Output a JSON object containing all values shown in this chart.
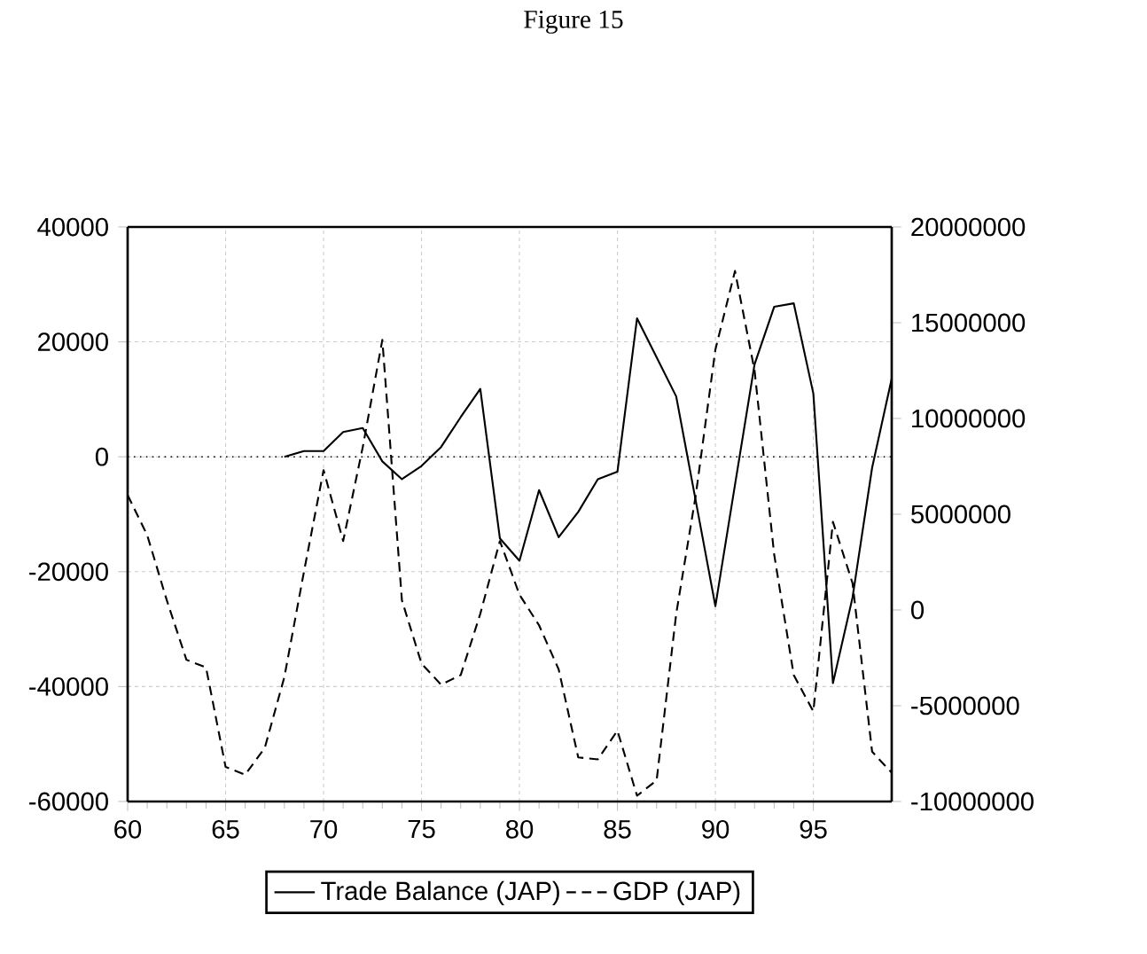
{
  "chart_data": {
    "type": "line",
    "title": "Figure 15",
    "x": [
      60,
      61,
      62,
      63,
      64,
      65,
      66,
      67,
      68,
      69,
      70,
      71,
      72,
      73,
      74,
      75,
      76,
      77,
      78,
      79,
      80,
      81,
      82,
      83,
      84,
      85,
      86,
      87,
      88,
      89,
      90,
      91,
      92,
      93,
      94,
      95,
      96,
      97,
      98,
      99
    ],
    "xlim": [
      60,
      99
    ],
    "xticks": [
      60,
      65,
      70,
      75,
      80,
      85,
      90,
      95
    ],
    "ylim": [
      -60000,
      40000
    ],
    "yticks": [
      -60000,
      -40000,
      -20000,
      0,
      20000,
      40000
    ],
    "y2lim": [
      -10000000,
      20000000
    ],
    "y2ticks": [
      -10000000,
      -5000000,
      0,
      5000000,
      10000000,
      15000000,
      20000000
    ],
    "grid": true,
    "legend": "bottom",
    "ref_lines": [
      {
        "axis": "y",
        "value": 0,
        "line_style": "dotted"
      }
    ],
    "series": [
      {
        "name": "Trade Balance (JAP)",
        "color": "#000000",
        "line_style": "solid",
        "values": [
          null,
          null,
          null,
          null,
          null,
          null,
          null,
          null,
          0,
          1000,
          1000,
          4300,
          5000,
          -800,
          -3900,
          -1600,
          1700,
          6900,
          11800,
          -14200,
          -18100,
          -5800,
          -14000,
          -9600,
          -3900,
          -2600,
          24100,
          17300,
          10500,
          -7700,
          -26000,
          -4900,
          16100,
          26100,
          26700,
          11000,
          -39400,
          -24500,
          -1900,
          13600
        ]
      },
      {
        "name": "GDP (JAP)",
        "color": "#000000",
        "line_style": "dashed",
        "axis": "y2",
        "values": [
          6000000,
          3900000,
          500000,
          -2600000,
          -3000000,
          -8200000,
          -8600000,
          -7200000,
          -3500000,
          2000000,
          7300000,
          3600000,
          8500000,
          14100000,
          500000,
          -2800000,
          -3900000,
          -3400000,
          -200000,
          3600000,
          800000,
          -800000,
          -3100000,
          -7700000,
          -7800000,
          -6300000,
          -9700000,
          -8900000,
          -200000,
          6000000,
          13600000,
          17700000,
          12500000,
          2900000,
          -3400000,
          -5300000,
          4600000,
          1400000,
          -7400000,
          -8500000
        ]
      }
    ]
  }
}
